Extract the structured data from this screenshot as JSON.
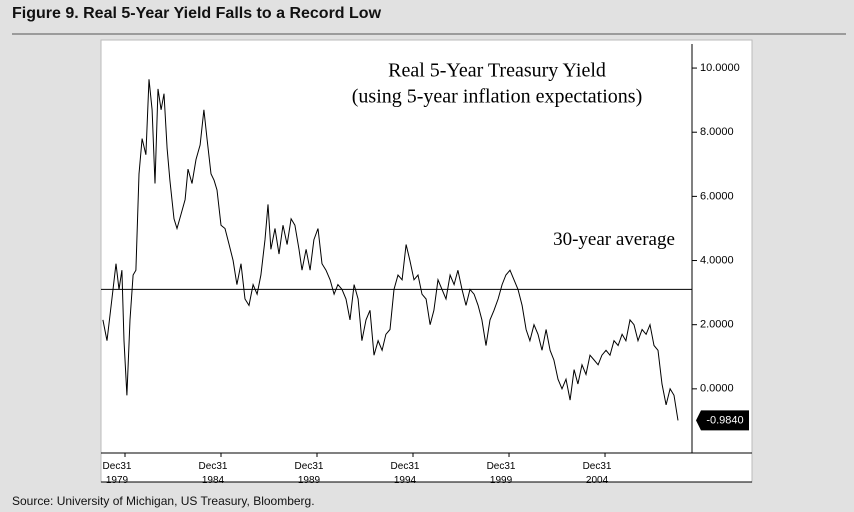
{
  "chart_data": {
    "type": "line",
    "title": "Figure 9. Real 5-Year Yield Falls to a Record Low",
    "annotations": [
      "Real 5-Year Treasury Yield",
      "(using 5-year inflation expectations)"
    ],
    "source": "Source: University of Michigan, US Treasury, Bloomberg.",
    "average": {
      "value": 3.1,
      "label": "30-year average"
    },
    "end_marker": {
      "value": -0.984,
      "label": "-0.9840"
    },
    "xlim": [
      1978.75,
      2009.53
    ],
    "xticks": [
      {
        "value": 1980,
        "label": "Dec31 1979"
      },
      {
        "value": 1985,
        "label": "Dec31 1984"
      },
      {
        "value": 1990,
        "label": "Dec31 1989"
      },
      {
        "value": 1995,
        "label": "Dec31 1994"
      },
      {
        "value": 2000,
        "label": "Dec31 1999"
      },
      {
        "value": 2005,
        "label": "Dec31 2004"
      }
    ],
    "ylim": [
      -2,
      10.75
    ],
    "yticks": [
      {
        "value": 0,
        "label": "0.0000"
      },
      {
        "value": 2,
        "label": "2.0000"
      },
      {
        "value": 4,
        "label": "4.0000"
      },
      {
        "value": 6,
        "label": "6.0000"
      },
      {
        "value": 8,
        "label": "8.0000"
      },
      {
        "value": 10,
        "label": "10.0000"
      }
    ],
    "color": "#000000",
    "x": [
      1978.85,
      1979.06,
      1979.32,
      1979.53,
      1979.69,
      1979.84,
      1979.95,
      1980.1,
      1980.26,
      1980.42,
      1980.57,
      1980.73,
      1980.89,
      1981.09,
      1981.25,
      1981.41,
      1981.56,
      1981.72,
      1981.88,
      1982.03,
      1982.19,
      1982.34,
      1982.55,
      1982.71,
      1982.92,
      1983.13,
      1983.28,
      1983.49,
      1983.7,
      1983.91,
      1984.11,
      1984.27,
      1984.48,
      1984.64,
      1984.79,
      1985.0,
      1985.21,
      1985.42,
      1985.63,
      1985.83,
      1986.04,
      1986.25,
      1986.46,
      1986.67,
      1986.88,
      1987.08,
      1987.29,
      1987.45,
      1987.6,
      1987.81,
      1988.02,
      1988.23,
      1988.44,
      1988.65,
      1988.85,
      1989.06,
      1989.22,
      1989.43,
      1989.64,
      1989.84,
      1990.05,
      1990.26,
      1990.47,
      1990.68,
      1990.89,
      1991.09,
      1991.3,
      1991.51,
      1991.72,
      1991.93,
      1992.14,
      1992.34,
      1992.55,
      1992.76,
      1992.97,
      1993.18,
      1993.39,
      1993.59,
      1993.8,
      1994.01,
      1994.22,
      1994.43,
      1994.64,
      1994.84,
      1995.05,
      1995.26,
      1995.47,
      1995.68,
      1995.89,
      1996.09,
      1996.3,
      1996.51,
      1996.72,
      1996.93,
      1997.14,
      1997.34,
      1997.55,
      1997.76,
      1997.97,
      1998.18,
      1998.39,
      1998.59,
      1998.8,
      1999.01,
      1999.22,
      1999.43,
      1999.64,
      1999.84,
      2000.05,
      2000.26,
      2000.47,
      2000.68,
      2000.89,
      2001.09,
      2001.3,
      2001.51,
      2001.72,
      2001.93,
      2002.14,
      2002.34,
      2002.55,
      2002.76,
      2002.97,
      2003.18,
      2003.39,
      2003.59,
      2003.8,
      2004.01,
      2004.22,
      2004.43,
      2004.64,
      2004.84,
      2005.05,
      2005.26,
      2005.47,
      2005.68,
      2005.89,
      2006.09,
      2006.3,
      2006.51,
      2006.72,
      2006.93,
      2007.14,
      2007.34,
      2007.55,
      2007.76,
      2007.97,
      2008.18,
      2008.39,
      2008.59,
      2008.8
    ],
    "values": [
      2.15,
      1.5,
      2.8,
      3.9,
      3.1,
      3.7,
      1.5,
      -0.2,
      2.15,
      3.55,
      3.7,
      6.7,
      7.8,
      7.3,
      9.65,
      8.7,
      6.4,
      9.35,
      8.7,
      9.2,
      7.5,
      6.5,
      5.3,
      5.0,
      5.45,
      5.9,
      6.85,
      6.4,
      7.15,
      7.6,
      8.7,
      7.8,
      6.7,
      6.5,
      6.2,
      5.1,
      5.0,
      4.5,
      4.0,
      3.25,
      3.9,
      2.8,
      2.6,
      3.25,
      2.95,
      3.55,
      4.65,
      5.75,
      4.35,
      5.0,
      4.2,
      5.1,
      4.5,
      5.3,
      5.1,
      4.35,
      3.7,
      4.35,
      3.7,
      4.65,
      5.0,
      3.9,
      3.7,
      3.4,
      2.95,
      3.25,
      3.1,
      2.8,
      2.15,
      3.25,
      2.8,
      1.5,
      2.15,
      2.45,
      1.05,
      1.5,
      1.2,
      1.7,
      1.85,
      3.1,
      3.55,
      3.4,
      4.5,
      4.0,
      3.4,
      3.55,
      2.95,
      2.8,
      2.0,
      2.45,
      3.4,
      3.1,
      2.8,
      3.55,
      3.25,
      3.7,
      3.1,
      2.6,
      3.1,
      2.95,
      2.6,
      2.15,
      1.35,
      2.15,
      2.45,
      2.8,
      3.25,
      3.55,
      3.7,
      3.4,
      3.1,
      2.6,
      1.85,
      1.5,
      2.0,
      1.7,
      1.2,
      1.85,
      1.2,
      0.9,
      0.3,
      0.0,
      0.3,
      -0.35,
      0.6,
      0.15,
      0.75,
      0.45,
      1.05,
      0.9,
      0.75,
      1.05,
      1.2,
      1.05,
      1.5,
      1.35,
      1.7,
      1.5,
      2.15,
      2.0,
      1.5,
      1.85,
      1.7,
      2.0,
      1.35,
      1.2,
      0.15,
      -0.5,
      0.0,
      -0.2,
      -0.984
    ]
  }
}
